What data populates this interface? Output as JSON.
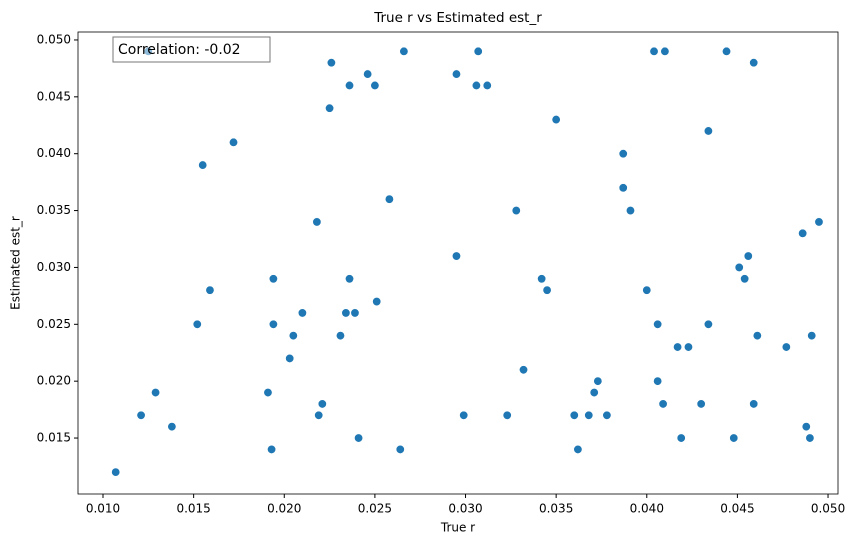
{
  "chart_data": {
    "type": "scatter",
    "title": "True r vs Estimated est_r",
    "x_label": "True r",
    "y_label": "Estimated est_r",
    "annotation": "Correlation: -0.02",
    "color": "#1f77b4",
    "grid": false,
    "xlim": [
      0.00862,
      0.05055
    ],
    "ylim": [
      0.01008,
      0.0507
    ],
    "xticks": [
      {
        "value": 0.01,
        "label": "0.010"
      },
      0.015,
      {
        "value": 0.02,
        "label": "0.020"
      },
      0.025,
      {
        "value": 0.03,
        "label": "0.030"
      },
      0.035,
      {
        "value": 0.04,
        "label": "0.040"
      },
      0.045,
      {
        "value": 0.05,
        "label": "0.050"
      }
    ],
    "yticks": [
      0.015,
      {
        "value": 0.02,
        "label": "0.020"
      },
      0.025,
      {
        "value": 0.03,
        "label": "0.030"
      },
      0.035,
      {
        "value": 0.04,
        "label": "0.040"
      },
      0.045,
      {
        "value": 0.05,
        "label": "0.050"
      }
    ],
    "x": [
      0.0107,
      0.0121,
      0.0129,
      0.0138,
      0.0125,
      0.0152,
      0.0155,
      0.0159,
      0.0172,
      0.0191,
      0.0193,
      0.0194,
      0.0194,
      0.0203,
      0.0205,
      0.021,
      0.0218,
      0.0219,
      0.0221,
      0.0225,
      0.0226,
      0.0231,
      0.0234,
      0.0236,
      0.0236,
      0.0239,
      0.0241,
      0.0246,
      0.025,
      0.0251,
      0.0258,
      0.0264,
      0.0266,
      0.0295,
      0.0295,
      0.0299,
      0.0306,
      0.0307,
      0.0312,
      0.0323,
      0.0328,
      0.0332,
      0.0342,
      0.0345,
      0.035,
      0.036,
      0.0362,
      0.0368,
      0.0371,
      0.0373,
      0.0378,
      0.0387,
      0.0387,
      0.0391,
      0.04,
      0.0404,
      0.0406,
      0.0406,
      0.0409,
      0.041,
      0.0417,
      0.0419,
      0.0423,
      0.043,
      0.0434,
      0.0434,
      0.0444,
      0.0448,
      0.0451,
      0.0454,
      0.0456,
      0.0459,
      0.0459,
      0.0461,
      0.0477,
      0.0486,
      0.0488,
      0.049,
      0.0491,
      0.0495
    ],
    "y": [
      0.012,
      0.017,
      0.019,
      0.016,
      0.049,
      0.025,
      0.039,
      0.028,
      0.041,
      0.019,
      0.014,
      0.029,
      0.025,
      0.022,
      0.024,
      0.026,
      0.034,
      0.017,
      0.018,
      0.044,
      0.048,
      0.024,
      0.026,
      0.046,
      0.029,
      0.026,
      0.015,
      0.047,
      0.046,
      0.027,
      0.036,
      0.014,
      0.049,
      0.047,
      0.031,
      0.017,
      0.046,
      0.049,
      0.046,
      0.017,
      0.035,
      0.021,
      0.029,
      0.028,
      0.043,
      0.017,
      0.014,
      0.017,
      0.019,
      0.02,
      0.017,
      0.04,
      0.037,
      0.035,
      0.028,
      0.049,
      0.025,
      0.02,
      0.018,
      0.049,
      0.023,
      0.015,
      0.023,
      0.018,
      0.042,
      0.025,
      0.049,
      0.015,
      0.03,
      0.029,
      0.031,
      0.048,
      0.018,
      0.024,
      0.023,
      0.033,
      0.016,
      0.015,
      0.024,
      0.034
    ]
  }
}
